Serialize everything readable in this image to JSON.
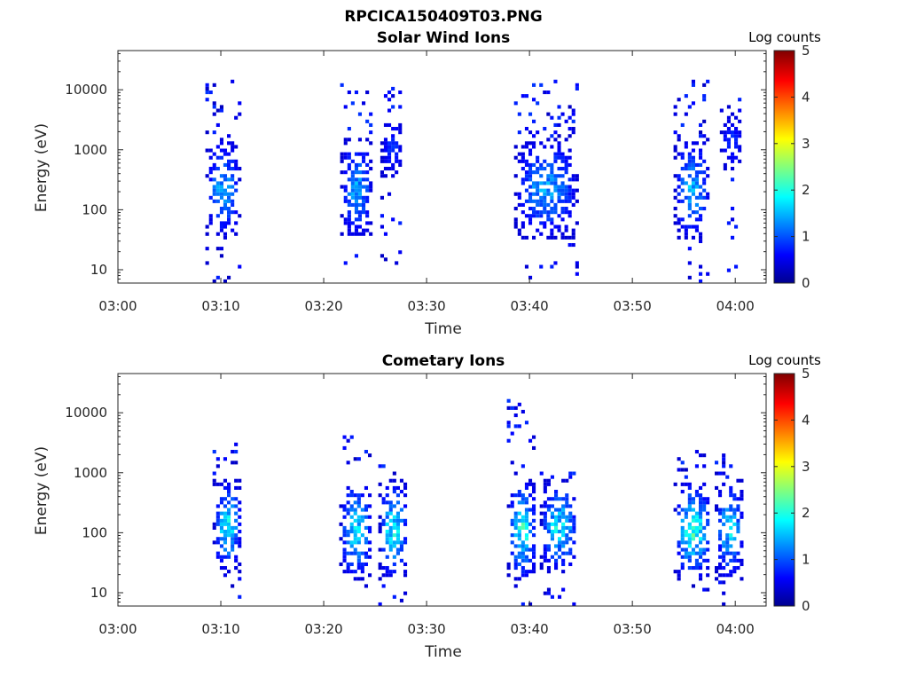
{
  "figure_title": "RPCICA150409T03.PNG",
  "chart_data": [
    {
      "type": "heatmap",
      "title": "Solar Wind Ions",
      "xlabel": "Time",
      "ylabel": "Energy (eV)",
      "x_ticks": [
        "03:00",
        "03:10",
        "03:20",
        "03:30",
        "03:40",
        "03:50",
        "04:00"
      ],
      "x_range_minutes": [
        0,
        63
      ],
      "y_ticks": [
        10,
        100,
        1000,
        10000
      ],
      "y_tick_labels": [
        "10",
        "100",
        "1000",
        "10000"
      ],
      "y_scale": "log",
      "y_range": [
        6,
        45000
      ],
      "colorbar": {
        "label": "Log counts",
        "ticks": [
          "0",
          "1",
          "2",
          "3",
          "4",
          "5"
        ],
        "range": [
          0,
          5
        ],
        "colormap": "jet"
      },
      "bursts": [
        {
          "t_start": 8.5,
          "t_end": 11.7,
          "core_e_min": 30,
          "core_e_max": 1500,
          "sparse_e_max": 13000,
          "peak_log_counts": 1.8
        },
        {
          "t_start": 21.6,
          "t_end": 24.5,
          "core_e_min": 30,
          "core_e_max": 1500,
          "sparse_e_max": 13000,
          "peak_log_counts": 1.8
        },
        {
          "t_start": 25.5,
          "t_end": 27.5,
          "core_e_min": 300,
          "core_e_max": 3500,
          "sparse_e_max": 12000,
          "peak_log_counts": 1.0
        },
        {
          "t_start": 38.5,
          "t_end": 44.5,
          "core_e_min": 30,
          "core_e_max": 1500,
          "sparse_e_max": 13000,
          "peak_log_counts": 1.8
        },
        {
          "t_start": 54.0,
          "t_end": 57.3,
          "core_e_min": 30,
          "core_e_max": 1500,
          "sparse_e_max": 13000,
          "peak_log_counts": 1.9
        },
        {
          "t_start": 58.5,
          "t_end": 60.5,
          "core_e_min": 400,
          "core_e_max": 4000,
          "sparse_e_max": 11000,
          "peak_log_counts": 1.0
        }
      ]
    },
    {
      "type": "heatmap",
      "title": "Cometary Ions",
      "xlabel": "Time",
      "ylabel": "Energy (eV)",
      "x_ticks": [
        "03:00",
        "03:10",
        "03:20",
        "03:30",
        "03:40",
        "03:50",
        "04:00"
      ],
      "x_range_minutes": [
        0,
        63
      ],
      "y_ticks": [
        10,
        100,
        1000,
        10000
      ],
      "y_tick_labels": [
        "10",
        "100",
        "1000",
        "10000"
      ],
      "y_scale": "log",
      "y_range": [
        6,
        45000
      ],
      "colorbar": {
        "label": "Log counts",
        "ticks": [
          "0",
          "1",
          "2",
          "3",
          "4",
          "5"
        ],
        "range": [
          0,
          5
        ],
        "colormap": "jet"
      },
      "bursts": [
        {
          "t_start": 9.2,
          "t_end": 11.8,
          "core_e_min": 20,
          "core_e_max": 700,
          "sparse_e_max": 3500,
          "peak_log_counts": 2.4
        },
        {
          "t_start": 21.5,
          "t_end": 24.5,
          "core_e_min": 15,
          "core_e_max": 700,
          "sparse_e_max": 4000,
          "peak_log_counts": 2.3
        },
        {
          "t_start": 25.3,
          "t_end": 28.0,
          "core_e_min": 15,
          "core_e_max": 700,
          "sparse_e_max": 1200,
          "peak_log_counts": 2.5
        },
        {
          "t_start": 37.8,
          "t_end": 40.5,
          "core_e_min": 15,
          "core_e_max": 700,
          "sparse_e_max": 15000,
          "peak_log_counts": 2.6
        },
        {
          "t_start": 41.0,
          "t_end": 44.5,
          "core_e_min": 20,
          "core_e_max": 700,
          "sparse_e_max": 1200,
          "peak_log_counts": 2.3
        },
        {
          "t_start": 54.0,
          "t_end": 57.5,
          "core_e_min": 15,
          "core_e_max": 700,
          "sparse_e_max": 2200,
          "peak_log_counts": 2.7
        },
        {
          "t_start": 58.0,
          "t_end": 60.6,
          "core_e_min": 15,
          "core_e_max": 700,
          "sparse_e_max": 2300,
          "peak_log_counts": 2.2
        }
      ]
    }
  ]
}
